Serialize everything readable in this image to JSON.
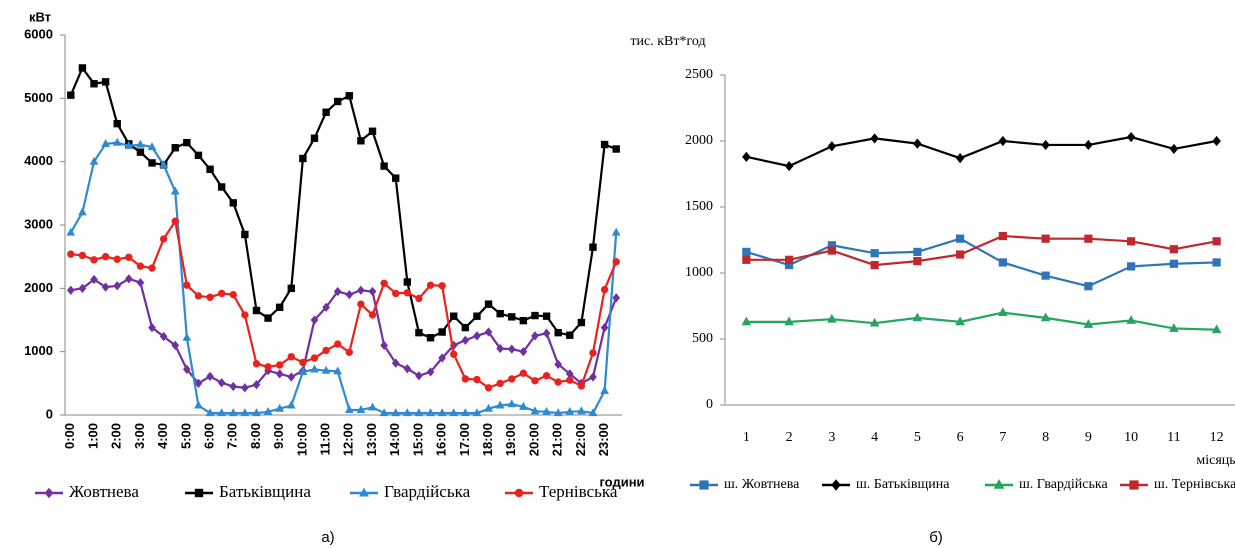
{
  "chart_data": [
    {
      "type": "line",
      "y_label": "кВт",
      "x_label": "години",
      "categories": [
        "0:00",
        null,
        "1:00",
        null,
        "2:00",
        null,
        "3:00",
        null,
        "4:00",
        null,
        "5:00",
        null,
        "6:00",
        null,
        "7:00",
        null,
        "8:00",
        null,
        "9:00",
        null,
        "10:00",
        null,
        "11:00",
        null,
        "12:00",
        null,
        "13:00",
        null,
        "14:00",
        null,
        "15:00",
        null,
        "16:00",
        null,
        "17:00",
        null,
        "18:00",
        null,
        "19:00",
        null,
        "20:00",
        null,
        "21:00",
        null,
        "22:00",
        null,
        "23:00",
        null
      ],
      "ylim": [
        0,
        6000
      ],
      "yticks": [
        0,
        1000,
        2000,
        3000,
        4000,
        5000,
        6000
      ],
      "grid": false,
      "legend": "bottom",
      "series": [
        {
          "name": "Жовтнева",
          "color": "#7030a0",
          "marker": "diamond",
          "values": [
            1970,
            2000,
            2140,
            2020,
            2040,
            2150,
            2090,
            1380,
            1240,
            1100,
            720,
            500,
            610,
            510,
            450,
            430,
            480,
            700,
            650,
            600,
            700,
            1500,
            1700,
            1950,
            1900,
            1970,
            1950,
            1100,
            820,
            730,
            620,
            680,
            900,
            1100,
            1180,
            1250,
            1310,
            1050,
            1040,
            1000,
            1250,
            1290,
            800,
            650,
            500,
            600,
            1380,
            1850
          ]
        },
        {
          "name": "Батьківщина",
          "color": "#000000",
          "marker": "square",
          "values": [
            5050,
            5480,
            5230,
            5260,
            4600,
            4280,
            4150,
            3980,
            3950,
            4220,
            4300,
            4100,
            3880,
            3600,
            3350,
            2850,
            1650,
            1530,
            1700,
            2000,
            4050,
            4370,
            4780,
            4950,
            5040,
            4330,
            4480,
            3930,
            3740,
            2100,
            1300,
            1220,
            1310,
            1560,
            1380,
            1560,
            1750,
            1600,
            1550,
            1490,
            1570,
            1560,
            1300,
            1260,
            1460,
            2650,
            4270,
            4200
          ]
        },
        {
          "name": "Гвардійська",
          "color": "#2e8bd0",
          "marker": "triangle",
          "values": [
            2880,
            3200,
            4000,
            4280,
            4300,
            4250,
            4270,
            4230,
            3950,
            3530,
            1220,
            150,
            30,
            30,
            30,
            30,
            30,
            50,
            100,
            150,
            680,
            720,
            700,
            690,
            80,
            80,
            120,
            30,
            30,
            30,
            30,
            30,
            30,
            30,
            30,
            30,
            100,
            150,
            170,
            130,
            60,
            50,
            30,
            50,
            60,
            30,
            380,
            2880
          ]
        },
        {
          "name": "Тернівська",
          "color": "#e8231e",
          "marker": "circle",
          "values": [
            2540,
            2520,
            2450,
            2500,
            2460,
            2490,
            2350,
            2320,
            2780,
            3060,
            2050,
            1880,
            1860,
            1920,
            1900,
            1580,
            810,
            760,
            790,
            920,
            830,
            900,
            1020,
            1120,
            990,
            1750,
            1580,
            2080,
            1920,
            1930,
            1840,
            2050,
            2040,
            960,
            570,
            560,
            430,
            500,
            570,
            660,
            540,
            620,
            520,
            550,
            460,
            980,
            1980,
            2420
          ]
        }
      ],
      "caption": "а)"
    },
    {
      "type": "line",
      "y_label": "тис. кВт*год",
      "x_label": "місяць",
      "categories": [
        "1",
        "2",
        "3",
        "4",
        "5",
        "6",
        "7",
        "8",
        "9",
        "10",
        "11",
        "12"
      ],
      "ylim": [
        0,
        2500
      ],
      "yticks": [
        0,
        500,
        1000,
        1500,
        2000,
        2500
      ],
      "grid": false,
      "legend": "bottom",
      "series": [
        {
          "name": "ш. Жовтнева",
          "color": "#2e75b6",
          "marker": "square",
          "values": [
            1160,
            1060,
            1210,
            1150,
            1160,
            1260,
            1080,
            980,
            900,
            1050,
            1070,
            1080
          ]
        },
        {
          "name": "ш. Батьківщина",
          "color": "#000000",
          "marker": "diamond",
          "values": [
            1880,
            1810,
            1960,
            2020,
            1980,
            1870,
            2000,
            1970,
            1970,
            2030,
            1940,
            2000
          ]
        },
        {
          "name": "ш. Гвардійська",
          "color": "#25a55f",
          "marker": "triangle",
          "values": [
            630,
            630,
            650,
            620,
            660,
            630,
            700,
            660,
            610,
            640,
            580,
            570
          ]
        },
        {
          "name": "ш. Тернівська",
          "color": "#c0282d",
          "marker": "square",
          "values": [
            1100,
            1100,
            1170,
            1060,
            1090,
            1140,
            1280,
            1260,
            1260,
            1240,
            1180,
            1240
          ]
        }
      ],
      "caption": "б)"
    }
  ]
}
